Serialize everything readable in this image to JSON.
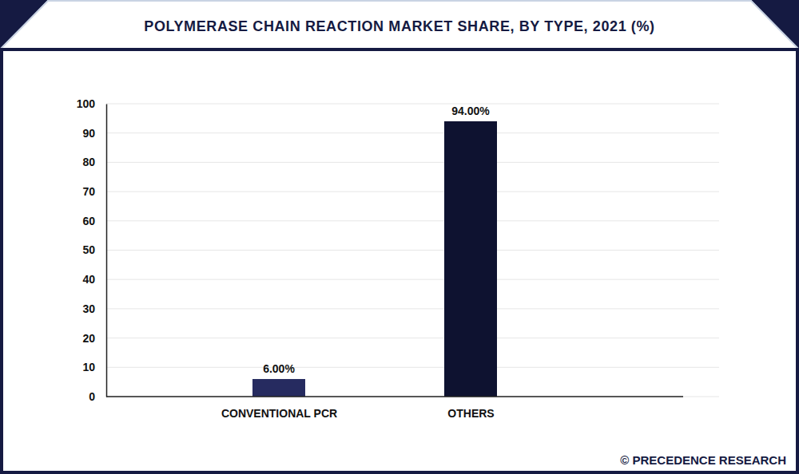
{
  "chart_data": {
    "type": "bar",
    "title": "POLYMERASE CHAIN REACTION MARKET SHARE, BY TYPE, 2021 (%)",
    "categories": [
      "CONVENTIONAL PCR",
      "OTHERS"
    ],
    "values": [
      6,
      94
    ],
    "value_labels": [
      "6.00%",
      "94.00%"
    ],
    "colors": [
      "#262b60",
      "#0e1230"
    ],
    "ylim": [
      0,
      100
    ],
    "yticks": [
      0,
      10,
      20,
      30,
      40,
      50,
      60,
      70,
      80,
      90,
      100
    ],
    "grid": true,
    "data_labels": true,
    "source": "© PRECEDENCE RESEARCH"
  }
}
